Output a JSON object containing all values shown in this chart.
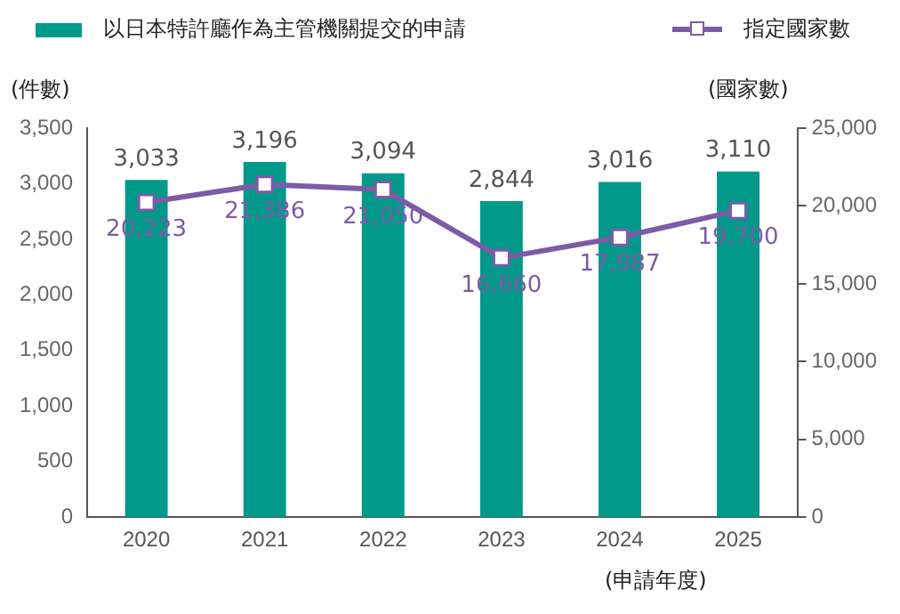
{
  "chart_data": {
    "type": "bar",
    "xlabel": "(申請年度)",
    "ylabel": "(件數)",
    "y2label": "(國家數)",
    "categories": [
      "2020",
      "2021",
      "2022",
      "2023",
      "2024",
      "2025"
    ],
    "series": [
      {
        "name": "以日本特許廳作為主管機關提交的申請",
        "color": "#00998a",
        "values": [
          3033,
          3196,
          3094,
          2844,
          3016,
          3110
        ],
        "value_labels": [
          "3,033",
          "3,196",
          "3,094",
          "2,844",
          "3,016",
          "3,110"
        ]
      },
      {
        "name": "指定國家數",
        "type": "line",
        "axis": "y2",
        "color": "#7d5ba6",
        "values": [
          20223,
          21386,
          21050,
          16660,
          17987,
          19700
        ],
        "value_labels": [
          "20,223",
          "21,386",
          "21,050",
          "16,660",
          "17,987",
          "19,700"
        ]
      }
    ],
    "ylim": [
      0,
      3500
    ],
    "yticks": [
      {
        "value": 0,
        "label": "0"
      },
      {
        "value": 500,
        "label": "500"
      },
      {
        "value": 1000,
        "label": "1,000"
      },
      {
        "value": 1500,
        "label": "1,500"
      },
      {
        "value": 2000,
        "label": "2,000"
      },
      {
        "value": 2500,
        "label": "2,500"
      },
      {
        "value": 3000,
        "label": "3,000"
      },
      {
        "value": 3500,
        "label": "3,500"
      }
    ],
    "y2lim": [
      0,
      25000
    ],
    "y2ticks": [
      {
        "value": 0,
        "label": "0"
      },
      {
        "value": 5000,
        "label": "5,000"
      },
      {
        "value": 10000,
        "label": "10,000"
      },
      {
        "value": 15000,
        "label": "15,000"
      },
      {
        "value": 20000,
        "label": "20,000"
      },
      {
        "value": 25000,
        "label": "25,000"
      }
    ],
    "legend": "top",
    "marker": "square",
    "grid": false
  }
}
